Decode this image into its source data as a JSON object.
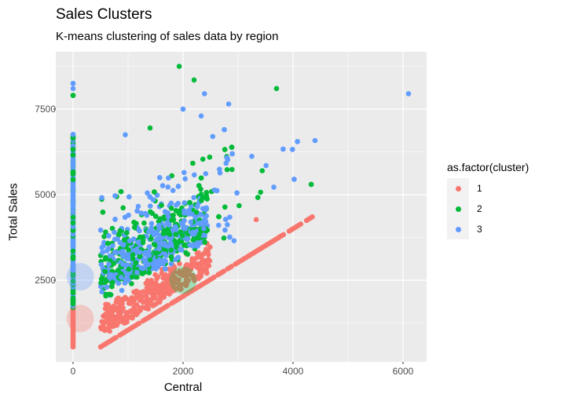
{
  "header": {
    "title": "Sales Clusters",
    "subtitle": "K-means clustering of sales data by region"
  },
  "colors": {
    "cluster_1": "#F8766D",
    "cluster_2": "#00BA38",
    "cluster_3": "#619CFF",
    "panel_bg": "#EBEBEB",
    "grid": "#FFFFFF"
  },
  "legend": {
    "title": "as.factor(cluster)",
    "items": [
      {
        "label": "1",
        "color": "#F8766D"
      },
      {
        "label": "2",
        "color": "#00BA38"
      },
      {
        "label": "3",
        "color": "#619CFF"
      }
    ]
  },
  "axes": {
    "x": {
      "label": "Central",
      "ticks": [
        "0",
        "2000",
        "4000",
        "6000"
      ]
    },
    "y": {
      "label": "Total Sales",
      "ticks": [
        "2500",
        "5000",
        "7500"
      ]
    }
  },
  "chart_data": {
    "type": "scatter",
    "title": "Sales Clusters",
    "subtitle": "K-means clustering of sales data by region",
    "xlabel": "Central",
    "ylabel": "Total Sales",
    "xlim": [
      -300,
      6450
    ],
    "ylim": [
      300,
      9350
    ],
    "x_ticks": [
      0,
      2000,
      4000,
      6000
    ],
    "y_ticks": [
      2500,
      5000,
      7500
    ],
    "grid": true,
    "legend_position": "right",
    "legend_title": "as.factor(cluster)",
    "series": [
      {
        "name": "1",
        "color": "#F8766D",
        "description": "Low total sales; includes x=0 column (~550-1700), dense lower band, and linear diagonal where Total Sales ≈ Central (x 500→4350)"
      },
      {
        "name": "2",
        "color": "#00BA38",
        "description": "Mid-to-high total sales, mixed in main cloud and x=0 column"
      },
      {
        "name": "3",
        "color": "#619CFF",
        "description": "Mid-to-high total sales, mixed in main cloud and x=0 column"
      }
    ],
    "centroids": [
      {
        "cluster": "1",
        "x": 130,
        "y": 1380,
        "color": "#F8766D"
      },
      {
        "cluster": "2",
        "x": 2000,
        "y": 2500,
        "color": "#00BA38"
      },
      {
        "cluster": "3",
        "x": 130,
        "y": 2600,
        "color": "#619CFF"
      }
    ],
    "diagonal": {
      "cluster": "1",
      "x_start": 500,
      "y_start": 550,
      "x_end": 4350,
      "y_end": 4350
    },
    "outliers": [
      {
        "x": 6100,
        "y": 7950,
        "cluster": "3"
      },
      {
        "x": 1930,
        "y": 8750,
        "cluster": "2"
      },
      {
        "x": 2200,
        "y": 8350,
        "cluster": "2"
      },
      {
        "x": 3700,
        "y": 8100,
        "cluster": "2"
      },
      {
        "x": 2830,
        "y": 7650,
        "cluster": "3"
      },
      {
        "x": 2000,
        "y": 7500,
        "cluster": "3"
      },
      {
        "x": 2390,
        "y": 7950,
        "cluster": "3"
      },
      {
        "x": 0,
        "y": 8250,
        "cluster": "3"
      },
      {
        "x": 0,
        "y": 8100,
        "cluster": "3"
      },
      {
        "x": 0,
        "y": 7900,
        "cluster": "2"
      },
      {
        "x": 950,
        "y": 6750,
        "cluster": "3"
      },
      {
        "x": 1400,
        "y": 6950,
        "cluster": "2"
      },
      {
        "x": 2750,
        "y": 6900,
        "cluster": "3"
      },
      {
        "x": 2540,
        "y": 6700,
        "cluster": "3"
      },
      {
        "x": 2330,
        "y": 7300,
        "cluster": "3"
      },
      {
        "x": 4400,
        "y": 6580,
        "cluster": "3"
      },
      {
        "x": 4080,
        "y": 6550,
        "cluster": "3"
      },
      {
        "x": 3990,
        "y": 6320,
        "cluster": "3"
      },
      {
        "x": 3820,
        "y": 6330,
        "cluster": "3"
      },
      {
        "x": 3510,
        "y": 5850,
        "cluster": "3"
      },
      {
        "x": 3250,
        "y": 6120,
        "cluster": "3"
      },
      {
        "x": 3440,
        "y": 5700,
        "cluster": "2"
      },
      {
        "x": 4020,
        "y": 5450,
        "cluster": "3"
      },
      {
        "x": 4330,
        "y": 5300,
        "cluster": "2"
      },
      {
        "x": 3650,
        "y": 5220,
        "cluster": "3"
      },
      {
        "x": 3410,
        "y": 5070,
        "cluster": "2"
      },
      {
        "x": 2980,
        "y": 5050,
        "cluster": "3"
      },
      {
        "x": 3360,
        "y": 4920,
        "cluster": "2"
      },
      {
        "x": 3020,
        "y": 4680,
        "cluster": "2"
      },
      {
        "x": 3330,
        "y": 4270,
        "cluster": "1"
      }
    ]
  }
}
